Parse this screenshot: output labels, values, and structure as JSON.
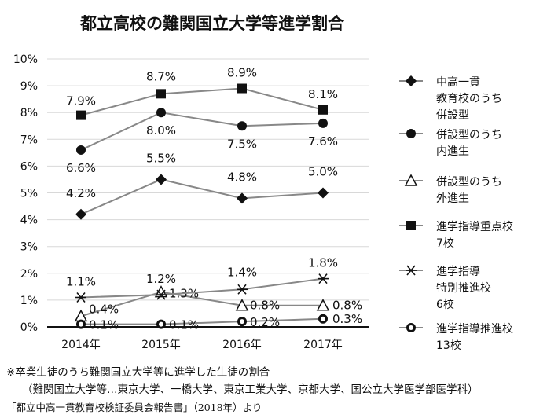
{
  "chart_data": {
    "type": "line",
    "title": "都立高校の難関国立大学等進学割合",
    "categories": [
      "2014年",
      "2015年",
      "2016年",
      "2017年"
    ],
    "ylim": [
      0,
      10
    ],
    "yticks": [
      "0%",
      "1%",
      "2%",
      "3%",
      "4%",
      "5%",
      "6%",
      "7%",
      "8%",
      "9%",
      "10%"
    ],
    "grid": true,
    "legend_position": "right",
    "series": [
      {
        "name": [
          "中高一貫",
          "教育校のうち",
          "併設型"
        ],
        "marker": "filled-diamond",
        "values": [
          4.2,
          5.5,
          4.8,
          5.0
        ],
        "labels": [
          "4.2%",
          "5.5%",
          "4.8%",
          "5.0%"
        ]
      },
      {
        "name": [
          "併設型のうち",
          "内進生"
        ],
        "marker": "filled-circle",
        "values": [
          6.6,
          8.0,
          7.5,
          7.6
        ],
        "labels": [
          "6.6%",
          "8.0%",
          "7.5%",
          "7.6%"
        ]
      },
      {
        "name": [
          "併設型のうち",
          "外進生"
        ],
        "marker": "open-triangle",
        "values": [
          0.4,
          1.3,
          0.8,
          0.8
        ],
        "labels": [
          "0.4%",
          "1.3%",
          "0.8%",
          "0.8%"
        ]
      },
      {
        "name": [
          "進学指導重点校",
          "7校"
        ],
        "marker": "filled-square",
        "values": [
          7.9,
          8.7,
          8.9,
          8.1
        ],
        "labels": [
          "7.9%",
          "8.7%",
          "8.9%",
          "8.1%"
        ]
      },
      {
        "name": [
          "進学指導",
          "特別推進校",
          "6校"
        ],
        "marker": "asterisk",
        "values": [
          1.1,
          1.2,
          1.4,
          1.8
        ],
        "labels": [
          "1.1%",
          "1.2%",
          "1.4%",
          "1.8%"
        ]
      },
      {
        "name": [
          "進学指導推進校",
          "13校"
        ],
        "marker": "open-circle",
        "values": [
          0.1,
          0.1,
          0.2,
          0.3
        ],
        "labels": [
          "0.1%",
          "0.1%",
          "0.2%",
          "0.3%"
        ]
      }
    ],
    "line_color": "#888888",
    "marker_color": "#111111"
  },
  "notes": {
    "line1": "※卒業生徒のうち難関国立大学等に進学した生徒の割合",
    "line2": "（難関国立大学等…東京大学、一橋大学、東京工業大学、京都大学、国公立大学医学部医学科）",
    "source": "「都立中高一貫教育校検証委員会報告書」（2018年）より"
  }
}
